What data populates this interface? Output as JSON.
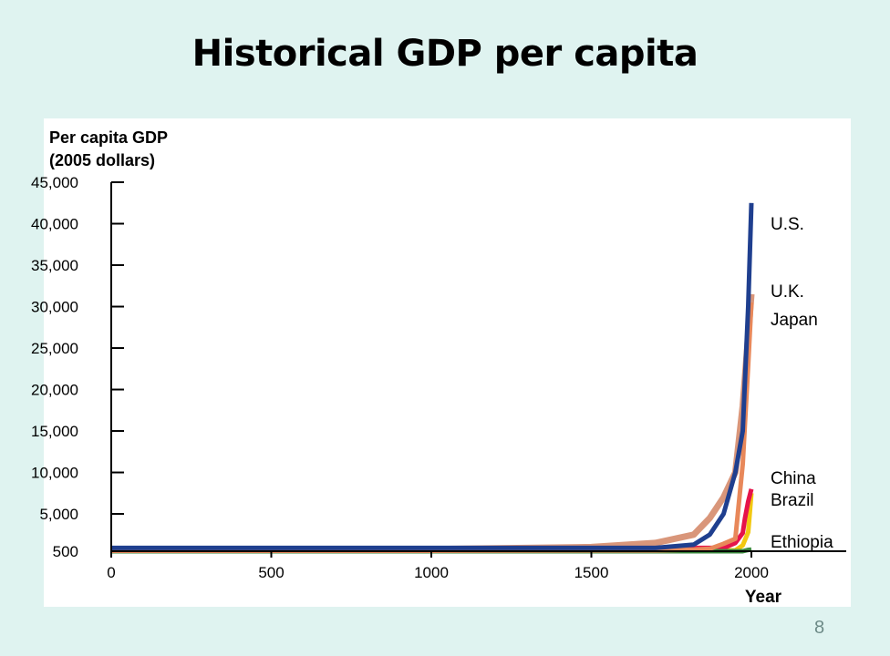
{
  "slide": {
    "title": "Historical GDP per capita",
    "page_number": "8"
  },
  "chart_data": {
    "type": "line",
    "title": "",
    "ylabel": [
      "Per capita GDP",
      "(2005 dollars)"
    ],
    "xlabel": "Year",
    "xlim": [
      0,
      2250
    ],
    "ylim": [
      500,
      45000
    ],
    "x_ticks": [
      0,
      500,
      1000,
      1500,
      2000
    ],
    "x_tick_labels": [
      "0",
      "500",
      "1000",
      "1500",
      "2000"
    ],
    "y_ticks": [
      500,
      5000,
      10000,
      15000,
      20000,
      25000,
      30000,
      35000,
      40000,
      45000
    ],
    "y_tick_labels": [
      "500",
      "5,000",
      "10,000",
      "15,000",
      "20,000",
      "25,000",
      "30,000",
      "35,000",
      "40,000",
      "45,000"
    ],
    "grid": false,
    "legend": "direct labels at right",
    "series": [
      {
        "name": "U.K.",
        "color": "#d9967a",
        "x": [
          0,
          1000,
          1500,
          1700,
          1820,
          1870,
          1913,
          1950,
          1973,
          2000
        ],
        "y": [
          700,
          750,
          1000,
          1500,
          2500,
          4500,
          7000,
          10000,
          18000,
          31500
        ]
      },
      {
        "name": "China",
        "color": "#f2c811",
        "x": [
          0,
          1000,
          1500,
          1700,
          1820,
          1870,
          1913,
          1950,
          1973,
          1990,
          2000
        ],
        "y": [
          550,
          550,
          550,
          550,
          550,
          550,
          600,
          600,
          1200,
          2800,
          7500
        ]
      },
      {
        "name": "Brazil",
        "color": "#e6134a",
        "x": [
          0,
          1000,
          1500,
          1700,
          1820,
          1870,
          1913,
          1950,
          1973,
          1980,
          1990,
          2000
        ],
        "y": [
          500,
          500,
          500,
          550,
          900,
          900,
          900,
          1500,
          2700,
          4500,
          6500,
          8000
        ]
      },
      {
        "name": "Ethiopia",
        "color": "#3b8a3e",
        "x": [
          0,
          1000,
          1500,
          1700,
          1820,
          1870,
          1913,
          1950,
          1973,
          1990,
          2000
        ],
        "y": [
          500,
          500,
          500,
          500,
          500,
          500,
          500,
          500,
          500,
          650,
          700
        ]
      },
      {
        "name": "Japan",
        "color": "#e8885a",
        "x": [
          0,
          1000,
          1500,
          1700,
          1820,
          1870,
          1913,
          1950,
          1973,
          1990,
          2000
        ],
        "y": [
          550,
          550,
          600,
          600,
          700,
          800,
          1400,
          2000,
          11000,
          23000,
          30500
        ]
      },
      {
        "name": "U.S.",
        "color": "#1f3f8f",
        "x": [
          0,
          1000,
          1500,
          1700,
          1820,
          1870,
          1913,
          1950,
          1973,
          1990,
          2000
        ],
        "y": [
          900,
          900,
          900,
          900,
          1300,
          2500,
          5000,
          10000,
          15000,
          30000,
          42500
        ]
      }
    ]
  }
}
